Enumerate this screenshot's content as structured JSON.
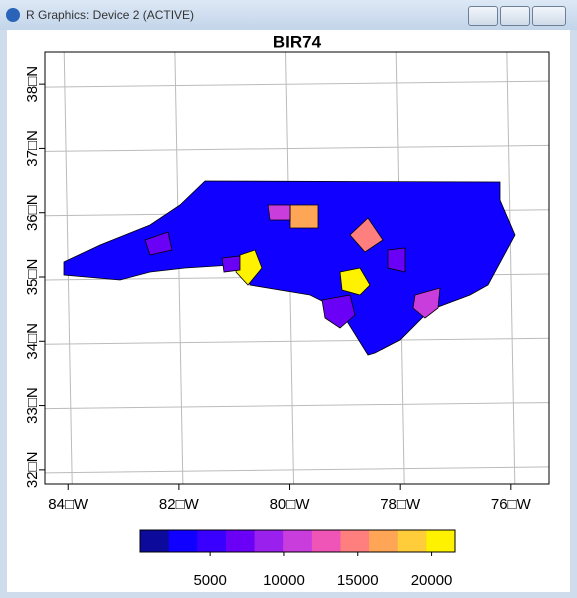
{
  "window": {
    "title": "R Graphics: Device 2 (ACTIVE)"
  },
  "chart_data": {
    "type": "choropleth",
    "title": "BIR74",
    "xlim": [
      -84.42,
      -75.31
    ],
    "xticks": [
      {
        "value": -84,
        "label": "84□W"
      },
      {
        "value": -82,
        "label": "82□W"
      },
      {
        "value": -80,
        "label": "80□W"
      },
      {
        "value": -78,
        "label": "78□W"
      },
      {
        "value": -76,
        "label": "76□W"
      }
    ],
    "ylim": [
      31.78,
      38.5
    ],
    "yticks": [
      {
        "value": 32,
        "label": "32□N"
      },
      {
        "value": 33,
        "label": "33□N"
      },
      {
        "value": 34,
        "label": "34□N"
      },
      {
        "value": 35,
        "label": "35□N"
      },
      {
        "value": 36,
        "label": "36□N"
      },
      {
        "value": 37,
        "label": "37□N"
      },
      {
        "value": 38,
        "label": "38□N"
      }
    ],
    "grid": true,
    "values": [
      3000,
      21588,
      20000,
      16184,
      11858,
      14000,
      10500,
      7500,
      7000,
      7000,
      8000
    ],
    "colorbar": {
      "lim": [
        248,
        21588
      ],
      "ticks": [
        5000,
        10000,
        15000,
        20000
      ],
      "colors": [
        "#0c0a9a",
        "#1000ff",
        "#3a00ff",
        "#6a00f6",
        "#9a20ee",
        "#c93ddc",
        "#ef54b7",
        "#ff7f7f",
        "#ffa656",
        "#ffcd3a",
        "#fff200"
      ]
    }
  }
}
